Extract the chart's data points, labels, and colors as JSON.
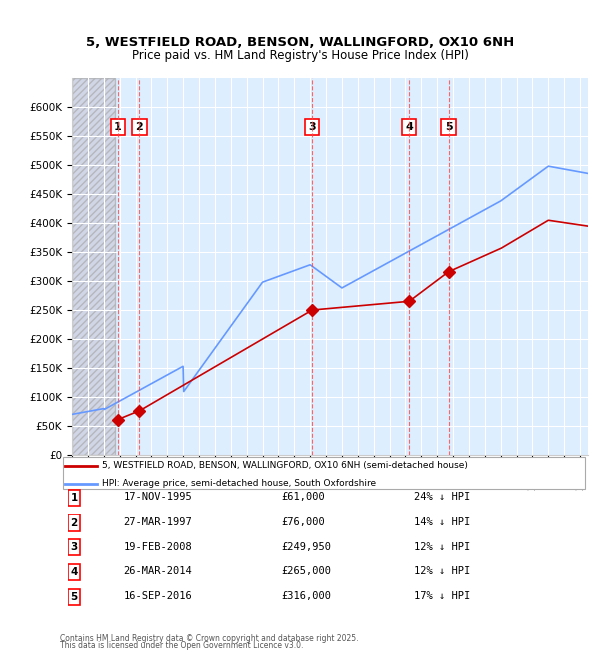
{
  "title_line1": "5, WESTFIELD ROAD, BENSON, WALLINGFORD, OX10 6NH",
  "title_line2": "Price paid vs. HM Land Registry's House Price Index (HPI)",
  "legend_property": "5, WESTFIELD ROAD, BENSON, WALLINGFORD, OX10 6NH (semi-detached house)",
  "legend_hpi": "HPI: Average price, semi-detached house, South Oxfordshire",
  "footer_line1": "Contains HM Land Registry data © Crown copyright and database right 2025.",
  "footer_line2": "This data is licensed under the Open Government Licence v3.0.",
  "ylim": [
    0,
    650000
  ],
  "yticks": [
    0,
    50000,
    100000,
    150000,
    200000,
    250000,
    300000,
    350000,
    400000,
    450000,
    500000,
    550000,
    600000
  ],
  "ytick_labels": [
    "£0",
    "£50K",
    "£100K",
    "£150K",
    "£200K",
    "£250K",
    "£300K",
    "£350K",
    "£400K",
    "£450K",
    "£500K",
    "£550K",
    "£600K"
  ],
  "xlim_start": 1993.0,
  "xlim_end": 2025.5,
  "sale_dates": [
    1995.88,
    1997.24,
    2008.13,
    2014.24,
    2016.72
  ],
  "sale_prices": [
    61000,
    76000,
    249950,
    265000,
    316000
  ],
  "sale_labels": [
    "1",
    "2",
    "3",
    "4",
    "5"
  ],
  "sale_table": [
    {
      "label": "1",
      "date": "17-NOV-1995",
      "price": "£61,000",
      "pct": "24% ↓ HPI"
    },
    {
      "label": "2",
      "date": "27-MAR-1997",
      "price": "£76,000",
      "pct": "14% ↓ HPI"
    },
    {
      "label": "3",
      "date": "19-FEB-2008",
      "price": "£249,950",
      "pct": "12% ↓ HPI"
    },
    {
      "label": "4",
      "date": "26-MAR-2014",
      "price": "£265,000",
      "pct": "12% ↓ HPI"
    },
    {
      "label": "5",
      "date": "16-SEP-2016",
      "price": "£316,000",
      "pct": "17% ↓ HPI"
    }
  ],
  "hpi_color": "#6699ff",
  "property_color": "#cc0000",
  "vline_color": "#ff4444",
  "hatch_end_year": 1995.0,
  "background_plot": "#ddeeff",
  "background_hatch": "#cccccc"
}
